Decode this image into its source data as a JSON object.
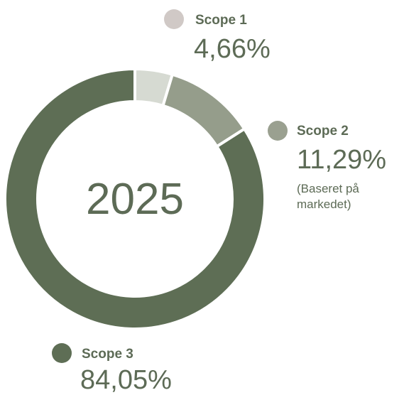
{
  "chart_data": {
    "type": "pie",
    "donut": true,
    "center_label": "2025",
    "categories": [
      "Scope 1",
      "Scope 2",
      "Scope 3"
    ],
    "values": [
      4.66,
      11.29,
      84.05
    ],
    "value_labels": [
      "4,66%",
      "11,29%",
      "84,05%"
    ],
    "colors": [
      "#d6dad2",
      "#959d8b",
      "#5e6e55"
    ],
    "legend_colors": [
      "#d0c9c6",
      "#9aa090",
      "#5e6e55"
    ],
    "annotations": [
      "(Baseret på markedet)"
    ]
  }
}
